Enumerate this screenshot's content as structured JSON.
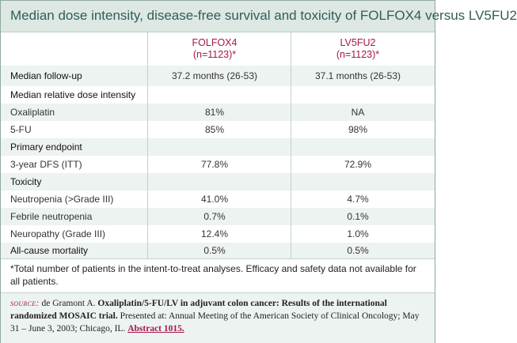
{
  "title": "Median dose intensity, disease-free survival and toxicity of FOLFOX4 versus LV5FU2",
  "columns": [
    {
      "name": "FOLFOX4",
      "n": "(n=1123)*"
    },
    {
      "name": "LV5FU2",
      "n": "(n=1123)*"
    }
  ],
  "rows": [
    {
      "label": "Median follow-up",
      "v1": "37.2 months (26-53)",
      "v2": "37.1 months (26-53)",
      "section": true
    },
    {
      "label": "Median relative dose intensity",
      "v1": "",
      "v2": "",
      "section": true
    },
    {
      "label": "Oxaliplatin",
      "v1": "81%",
      "v2": "NA",
      "section": false
    },
    {
      "label": "5-FU",
      "v1": "85%",
      "v2": "98%",
      "section": false
    },
    {
      "label": "Primary endpoint",
      "v1": "",
      "v2": "",
      "section": true
    },
    {
      "label": "3-year DFS (ITT)",
      "v1": "77.8%",
      "v2": "72.9%",
      "section": false
    },
    {
      "label": "Toxicity",
      "v1": "",
      "v2": "",
      "section": true
    },
    {
      "label": "Neutropenia (>Grade III)",
      "v1": "41.0%",
      "v2": "4.7%",
      "section": false
    },
    {
      "label": "Febrile neutropenia",
      "v1": "0.7%",
      "v2": "0.1%",
      "section": false
    },
    {
      "label": "Neuropathy (Grade III)",
      "v1": "12.4%",
      "v2": "1.0%",
      "section": false
    },
    {
      "label": "All-cause mortality",
      "v1": "0.5%",
      "v2": "0.5%",
      "section": true
    }
  ],
  "footnote": "*Total number of patients in the intent-to-treat analyses. Efficacy and safety data not available for all patients.",
  "source": {
    "label": "source:",
    "authors": "de Gramont A.",
    "article_title": "Oxaliplatin/5-FU/LV in adjuvant colon cancer: Results of the international randomized MOSAIC trial.",
    "citation": "Presented at: Annual Meeting of the American Society of Clinical Oncology; May 31 – June 3, 2003; Chicago, IL.",
    "link_text": "Abstract 1015."
  },
  "colors": {
    "accent": "#a3174f",
    "title_text": "#2f5e57",
    "title_background": "#dde8e3",
    "row_shade": "#edf3f0",
    "rule": "#c2d1cb"
  }
}
